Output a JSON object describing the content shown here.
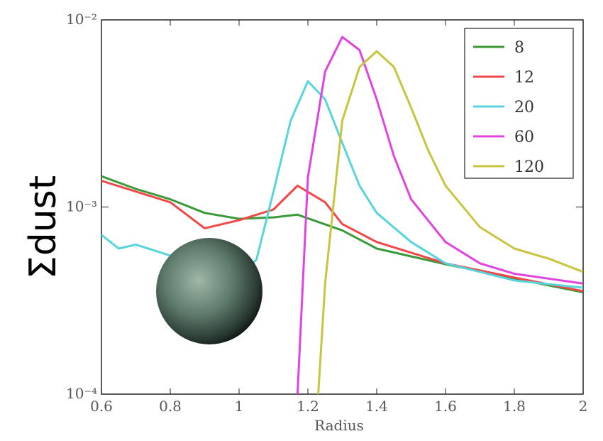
{
  "chart_data": {
    "type": "line",
    "y_label": "Σdust",
    "x_label": "Radius",
    "log_y": true,
    "xlim": [
      0.6,
      2.0
    ],
    "xticks": [
      0.6,
      0.8,
      1.0,
      1.2,
      1.4,
      1.6,
      1.8,
      2.0
    ],
    "ylim": [
      0.0001,
      0.01
    ],
    "yticks": [
      {
        "value": 0.0001,
        "label": "10⁻⁴"
      },
      {
        "value": 0.001,
        "label": "10⁻³"
      },
      {
        "value": 0.01,
        "label": "10⁻²"
      }
    ],
    "legend": "upper right",
    "series": [
      {
        "name": "8",
        "color": "#3a9a3a",
        "x": [
          0.6,
          0.7,
          0.8,
          0.9,
          1.0,
          1.1,
          1.17,
          1.3,
          1.4,
          1.6,
          1.8,
          2.0
        ],
        "values": [
          0.00146,
          0.00125,
          0.0011,
          0.00093,
          0.000865,
          0.00088,
          0.00091,
          0.00075,
          0.0006,
          0.000495,
          0.000415,
          0.00035
        ]
      },
      {
        "name": "12",
        "color": "#f04848",
        "x": [
          0.6,
          0.7,
          0.8,
          0.9,
          1.0,
          1.1,
          1.17,
          1.25,
          1.3,
          1.4,
          1.5,
          1.6,
          1.8,
          2.0
        ],
        "values": [
          0.00138,
          0.00121,
          0.00106,
          0.00077,
          0.00085,
          0.00097,
          0.0013,
          0.00106,
          0.00081,
          0.00065,
          0.00057,
          0.0005,
          0.00042,
          0.000355
        ]
      },
      {
        "name": "20",
        "color": "#58d4dc",
        "x": [
          0.6,
          0.65,
          0.7,
          0.8,
          0.9,
          1.0,
          1.05,
          1.1,
          1.15,
          1.2,
          1.25,
          1.3,
          1.35,
          1.4,
          1.5,
          1.6,
          1.8,
          2.0
        ],
        "values": [
          0.00071,
          0.0006,
          0.00063,
          0.00055,
          0.0005,
          0.00045,
          0.00052,
          0.00121,
          0.0029,
          0.0047,
          0.00376,
          0.0022,
          0.0013,
          0.00093,
          0.00065,
          0.0005,
          0.000405,
          0.00037
        ]
      },
      {
        "name": "60",
        "color": "#e044e0",
        "x": [
          1.17,
          1.2,
          1.25,
          1.3,
          1.35,
          1.4,
          1.45,
          1.5,
          1.6,
          1.7,
          1.8,
          2.0
        ],
        "values": [
          0.0001,
          0.00144,
          0.0053,
          0.0081,
          0.0069,
          0.00376,
          0.00187,
          0.0011,
          0.00065,
          0.0005,
          0.00044,
          0.00039
        ]
      },
      {
        "name": "120",
        "color": "#c8c440",
        "x": [
          1.23,
          1.25,
          1.3,
          1.35,
          1.4,
          1.45,
          1.5,
          1.55,
          1.6,
          1.7,
          1.8,
          1.9,
          2.0
        ],
        "values": [
          0.0001,
          0.00039,
          0.0029,
          0.0056,
          0.0068,
          0.0056,
          0.0034,
          0.002,
          0.0013,
          0.00078,
          0.0006,
          0.00053,
          0.00045
        ]
      }
    ]
  }
}
